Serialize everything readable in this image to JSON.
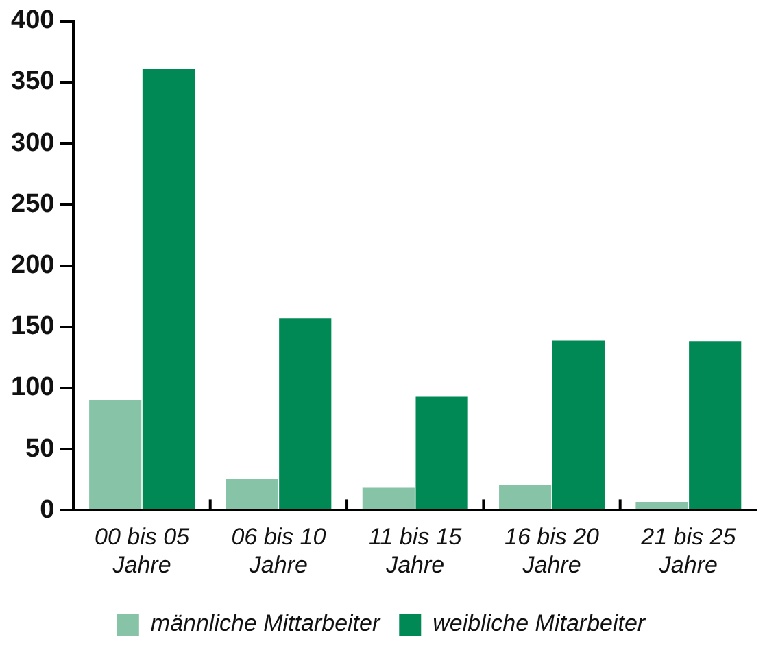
{
  "chart_data": {
    "type": "bar",
    "categories": [
      "00 bis 05 Jahre",
      "06 bis 10 Jahre",
      "11 bis 15 Jahre",
      "16 bis 20 Jahre",
      "21 bis 25 Jahre"
    ],
    "series": [
      {
        "name": "männliche Mittarbeiter",
        "color": "#87c3a6",
        "values": [
          90,
          26,
          19,
          21,
          7
        ]
      },
      {
        "name": "weibliche Mitarbeiter",
        "color": "#008954",
        "values": [
          361,
          157,
          93,
          139,
          138
        ]
      }
    ],
    "ylim": [
      0,
      400
    ],
    "yticks": [
      0,
      50,
      100,
      150,
      200,
      250,
      300,
      350,
      400
    ],
    "grid": false,
    "legend": "bottom"
  }
}
